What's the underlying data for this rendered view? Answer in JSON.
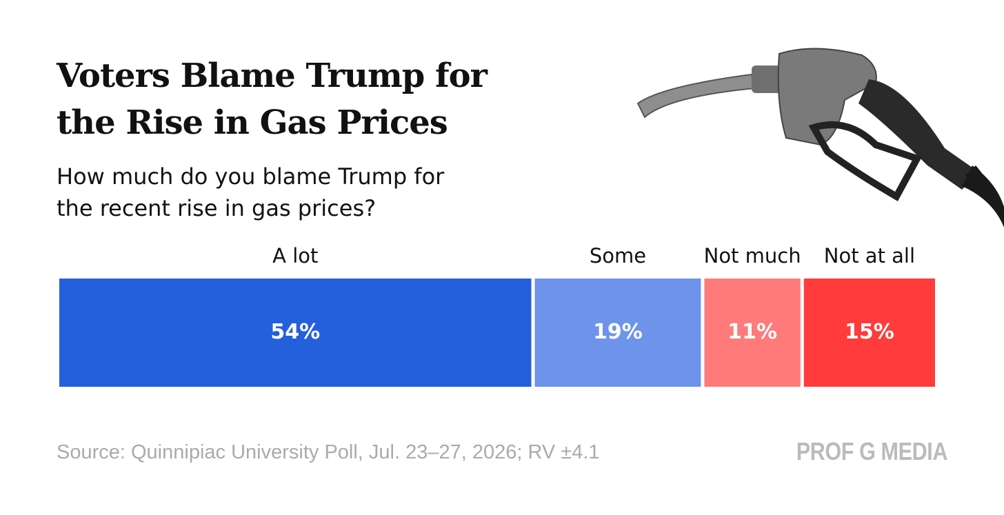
{
  "chart_data": {
    "type": "stacked-bar",
    "title": "Voters Blame Trump for the Rise in Gas Prices",
    "subtitle": "How much do you blame Trump for the recent rise in gas prices?",
    "categories": [
      "A lot",
      "Some",
      "Not much",
      "Not at all"
    ],
    "values": [
      54,
      19,
      11,
      15
    ],
    "value_labels": [
      "54%",
      "19%",
      "11%",
      "15%"
    ],
    "colors": [
      "#245fdc",
      "#6e93ea",
      "#ff7b7b",
      "#ff3b3b"
    ],
    "source": "Source: Quinnipiac University Poll, Jul. 23–27, 2026; RV ±4.1",
    "brand": "PROF G MEDIA"
  }
}
